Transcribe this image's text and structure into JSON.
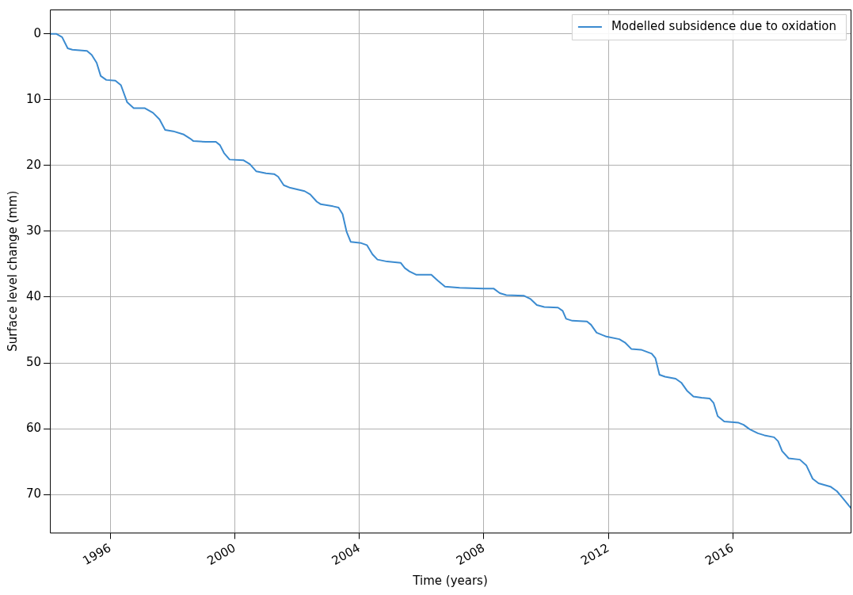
{
  "chart_data": {
    "type": "line",
    "xlabel": "Time (years)",
    "ylabel": "Surface level change (mm)",
    "xlim": [
      1994.06,
      2019.78
    ],
    "xticks": [
      1996,
      2000,
      2004,
      2008,
      2012,
      2016
    ],
    "ylim": [
      75.8,
      -3.7
    ],
    "yticks": [
      0,
      10,
      20,
      30,
      40,
      50,
      60,
      70
    ],
    "grid": true,
    "legend": "top right",
    "marker": "none",
    "line_style": "solid",
    "series": [
      {
        "name": "Modelled subsidence due to oxidation",
        "color": "#3b8bd0",
        "x": [
          1994.06,
          1994.26,
          1994.45,
          1994.63,
          1994.78,
          1995.25,
          1995.4,
          1995.56,
          1995.69,
          1995.87,
          1996.16,
          1996.34,
          1996.54,
          1996.75,
          1997.11,
          1997.37,
          1997.58,
          1997.76,
          1998.02,
          1998.36,
          1998.56,
          1998.67,
          1999.06,
          1999.39,
          1999.52,
          1999.65,
          1999.83,
          2000.27,
          2000.48,
          2000.69,
          2001.0,
          2001.26,
          2001.39,
          2001.57,
          2001.78,
          2002.24,
          2002.42,
          2002.63,
          2002.76,
          2003.15,
          2003.33,
          2003.46,
          2003.59,
          2003.72,
          2004.06,
          2004.24,
          2004.42,
          2004.58,
          2004.89,
          2005.33,
          2005.46,
          2005.61,
          2005.82,
          2006.31,
          2006.52,
          2006.75,
          2007.22,
          2007.99,
          2008.31,
          2008.51,
          2008.72,
          2009.29,
          2009.5,
          2009.7,
          2009.94,
          2010.38,
          2010.53,
          2010.64,
          2010.84,
          2011.31,
          2011.44,
          2011.62,
          2011.93,
          2012.35,
          2012.53,
          2012.74,
          2013.05,
          2013.39,
          2013.51,
          2013.64,
          2013.82,
          2014.16,
          2014.34,
          2014.52,
          2014.73,
          2014.99,
          2015.25,
          2015.38,
          2015.51,
          2015.72,
          2016.18,
          2016.34,
          2016.54,
          2016.8,
          2017.01,
          2017.32,
          2017.45,
          2017.58,
          2017.79,
          2018.15,
          2018.36,
          2018.56,
          2018.75,
          2019.13,
          2019.34,
          2019.52,
          2019.78
        ],
        "values": [
          0,
          0,
          0.5,
          2.2,
          2.4,
          2.6,
          3.2,
          4.4,
          6.4,
          7.0,
          7.1,
          7.8,
          10.4,
          11.3,
          11.3,
          12.0,
          13.0,
          14.6,
          14.8,
          15.3,
          15.9,
          16.3,
          16.4,
          16.4,
          16.9,
          18.1,
          19.1,
          19.2,
          19.8,
          20.9,
          21.2,
          21.3,
          21.7,
          23.0,
          23.4,
          23.9,
          24.4,
          25.5,
          25.9,
          26.2,
          26.4,
          27.4,
          30.1,
          31.6,
          31.8,
          32.1,
          33.5,
          34.3,
          34.6,
          34.8,
          35.6,
          36.1,
          36.6,
          36.6,
          37.5,
          38.4,
          38.6,
          38.7,
          38.7,
          39.4,
          39.7,
          39.8,
          40.3,
          41.2,
          41.5,
          41.6,
          42.1,
          43.3,
          43.6,
          43.7,
          44.2,
          45.4,
          46.0,
          46.4,
          46.9,
          47.9,
          48.0,
          48.6,
          49.3,
          51.8,
          52.1,
          52.4,
          53.0,
          54.2,
          55.1,
          55.3,
          55.4,
          56.1,
          58.1,
          58.9,
          59.1,
          59.4,
          60.1,
          60.7,
          61.0,
          61.3,
          61.9,
          63.4,
          64.5,
          64.7,
          65.6,
          67.6,
          68.3,
          68.8,
          69.5,
          70.5,
          72.0
        ]
      }
    ]
  }
}
